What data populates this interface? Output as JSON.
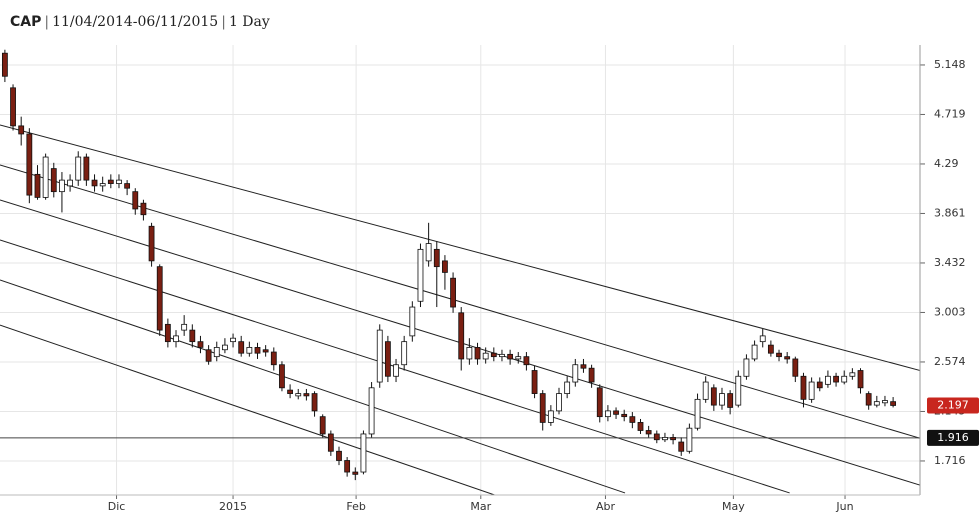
{
  "chart_data": {
    "type": "candlestick",
    "symbol": "CAP",
    "separator": "|",
    "range": "11/04/2014-06/11/2015",
    "interval": "1 Day",
    "open": [
      5.25,
      4.95,
      4.62,
      4.55,
      4.2,
      4.0,
      4.25,
      4.05,
      4.1,
      4.15,
      4.35,
      4.15,
      4.1,
      4.15,
      4.12,
      4.12,
      4.05,
      3.95,
      3.75,
      3.4,
      2.9,
      2.75,
      2.85,
      2.85,
      2.75,
      2.68,
      2.62,
      2.68,
      2.75,
      2.75,
      2.65,
      2.7,
      2.68,
      2.66,
      2.55,
      2.33,
      2.28,
      2.3,
      2.3,
      2.1,
      1.95,
      1.8,
      1.72,
      1.62,
      1.62,
      1.95,
      2.4,
      2.75,
      2.45,
      2.55,
      2.8,
      3.1,
      3.45,
      3.55,
      3.45,
      3.3,
      3.0,
      2.6,
      2.7,
      2.6,
      2.65,
      2.62,
      2.64,
      2.6,
      2.62,
      2.5,
      2.3,
      2.05,
      2.15,
      2.3,
      2.4,
      2.55,
      2.52,
      2.35,
      2.1,
      2.15,
      2.12,
      2.1,
      2.05,
      1.98,
      1.95,
      1.9,
      1.92,
      1.88,
      1.8,
      2.0,
      2.25,
      2.35,
      2.2,
      2.3,
      2.2,
      2.45,
      2.6,
      2.75,
      2.72,
      2.65,
      2.62,
      2.6,
      2.45,
      2.25,
      2.4,
      2.38,
      2.45,
      2.4,
      2.45,
      2.5,
      2.3,
      2.2,
      2.22,
      2.23
    ],
    "high": [
      5.28,
      4.98,
      4.7,
      4.6,
      4.28,
      4.38,
      4.3,
      4.22,
      4.2,
      4.4,
      4.38,
      4.2,
      4.18,
      4.2,
      4.2,
      4.15,
      4.08,
      3.98,
      3.78,
      3.42,
      2.95,
      2.85,
      2.98,
      2.9,
      2.8,
      2.72,
      2.75,
      2.78,
      2.82,
      2.8,
      2.75,
      2.74,
      2.72,
      2.7,
      2.58,
      2.38,
      2.34,
      2.34,
      2.32,
      2.12,
      1.98,
      1.84,
      1.75,
      1.66,
      1.98,
      2.4,
      2.9,
      2.8,
      2.6,
      2.8,
      3.1,
      3.6,
      3.78,
      3.62,
      3.5,
      3.35,
      3.05,
      2.78,
      2.74,
      2.7,
      2.7,
      2.68,
      2.68,
      2.66,
      2.66,
      2.54,
      2.33,
      2.2,
      2.35,
      2.45,
      2.6,
      2.6,
      2.55,
      2.38,
      2.2,
      2.18,
      2.16,
      2.14,
      2.08,
      2.02,
      1.98,
      1.96,
      1.95,
      1.92,
      2.04,
      2.3,
      2.45,
      2.38,
      2.35,
      2.33,
      2.5,
      2.64,
      2.76,
      2.86,
      2.76,
      2.68,
      2.66,
      2.62,
      2.48,
      2.44,
      2.44,
      2.5,
      2.48,
      2.5,
      2.52,
      2.52,
      2.32,
      2.28,
      2.28,
      2.27
    ],
    "low": [
      5.0,
      4.58,
      4.45,
      3.95,
      3.98,
      3.98,
      4.0,
      3.87,
      4.05,
      4.1,
      4.1,
      4.05,
      4.05,
      4.08,
      4.08,
      4.02,
      3.85,
      3.8,
      3.4,
      2.8,
      2.7,
      2.7,
      2.8,
      2.7,
      2.65,
      2.55,
      2.58,
      2.65,
      2.7,
      2.62,
      2.62,
      2.6,
      2.62,
      2.5,
      2.32,
      2.26,
      2.25,
      2.24,
      2.1,
      1.92,
      1.76,
      1.68,
      1.58,
      1.55,
      1.6,
      1.92,
      2.35,
      2.4,
      2.4,
      2.5,
      2.75,
      3.05,
      3.4,
      3.05,
      3.2,
      3.0,
      2.5,
      2.55,
      2.55,
      2.56,
      2.58,
      2.58,
      2.55,
      2.56,
      2.5,
      2.26,
      1.98,
      2.02,
      2.12,
      2.26,
      2.36,
      2.48,
      2.35,
      2.05,
      2.06,
      2.08,
      2.06,
      2.0,
      1.95,
      1.92,
      1.87,
      1.88,
      1.86,
      1.76,
      1.78,
      1.98,
      2.22,
      2.15,
      2.16,
      2.12,
      2.18,
      2.42,
      2.58,
      2.7,
      2.62,
      2.58,
      2.56,
      2.4,
      2.18,
      2.22,
      2.32,
      2.35,
      2.36,
      2.38,
      2.42,
      2.3,
      2.16,
      2.18,
      2.19,
      2.18
    ],
    "close": [
      5.05,
      4.62,
      4.55,
      4.02,
      4.0,
      4.35,
      4.05,
      4.15,
      4.15,
      4.35,
      4.15,
      4.1,
      4.12,
      4.12,
      4.15,
      4.08,
      3.9,
      3.85,
      3.45,
      2.85,
      2.75,
      2.8,
      2.9,
      2.75,
      2.7,
      2.58,
      2.7,
      2.72,
      2.78,
      2.65,
      2.7,
      2.65,
      2.66,
      2.55,
      2.35,
      2.3,
      2.3,
      2.28,
      2.15,
      1.95,
      1.8,
      1.72,
      1.62,
      1.6,
      1.95,
      2.35,
      2.85,
      2.45,
      2.55,
      2.75,
      3.05,
      3.55,
      3.6,
      3.4,
      3.35,
      3.05,
      2.6,
      2.7,
      2.6,
      2.65,
      2.62,
      2.64,
      2.6,
      2.62,
      2.55,
      2.3,
      2.05,
      2.15,
      2.3,
      2.4,
      2.55,
      2.52,
      2.4,
      2.1,
      2.15,
      2.12,
      2.1,
      2.05,
      1.98,
      1.95,
      1.9,
      1.92,
      1.9,
      1.8,
      2.0,
      2.25,
      2.4,
      2.2,
      2.3,
      2.18,
      2.45,
      2.6,
      2.72,
      2.8,
      2.65,
      2.62,
      2.6,
      2.45,
      2.25,
      2.4,
      2.35,
      2.45,
      2.4,
      2.45,
      2.48,
      2.35,
      2.2,
      2.23,
      2.24,
      2.197
    ],
    "up_color": "#ffffff",
    "down_color": "#7a1f12",
    "wick_color": "#111111",
    "xlim": [
      -0.6,
      112.3
    ],
    "xticks": [
      {
        "value": 13.7,
        "label": "Dic"
      },
      {
        "value": 28,
        "label": "2015"
      },
      {
        "value": 43.1,
        "label": "Feb"
      },
      {
        "value": 58.4,
        "label": "Mar"
      },
      {
        "value": 73.7,
        "label": "Abr"
      },
      {
        "value": 89.4,
        "label": "May"
      },
      {
        "value": 103.1,
        "label": "Jun"
      }
    ],
    "ylim": [
      1.421,
      5.321
    ],
    "yticks": [
      1.716,
      2.145,
      2.574,
      3.003,
      3.432,
      3.861,
      4.29,
      {
        "value": 4.719,
        "label": "4.719"
      },
      5.148
    ],
    "grid": true,
    "channel_lines": [
      {
        "x": [
          -0.6,
          113
        ],
        "y": [
          4.628,
          2.487
        ]
      },
      {
        "x": [
          -0.6,
          113
        ],
        "y": [
          4.281,
          1.898
        ]
      },
      {
        "x": [
          -0.6,
          113
        ],
        "y": [
          3.978,
          1.491
        ]
      },
      {
        "x": [
          -0.6,
          96.3
        ],
        "y": [
          3.631,
          1.439
        ]
      },
      {
        "x": [
          -0.6,
          76.1
        ],
        "y": [
          3.285,
          1.439
        ]
      },
      {
        "x": [
          -0.6,
          60.1
        ],
        "y": [
          2.894,
          1.421
        ]
      }
    ],
    "level": 1.916,
    "level_color": "#111111",
    "last_price": 2.197,
    "last_color": "#c8261e"
  }
}
